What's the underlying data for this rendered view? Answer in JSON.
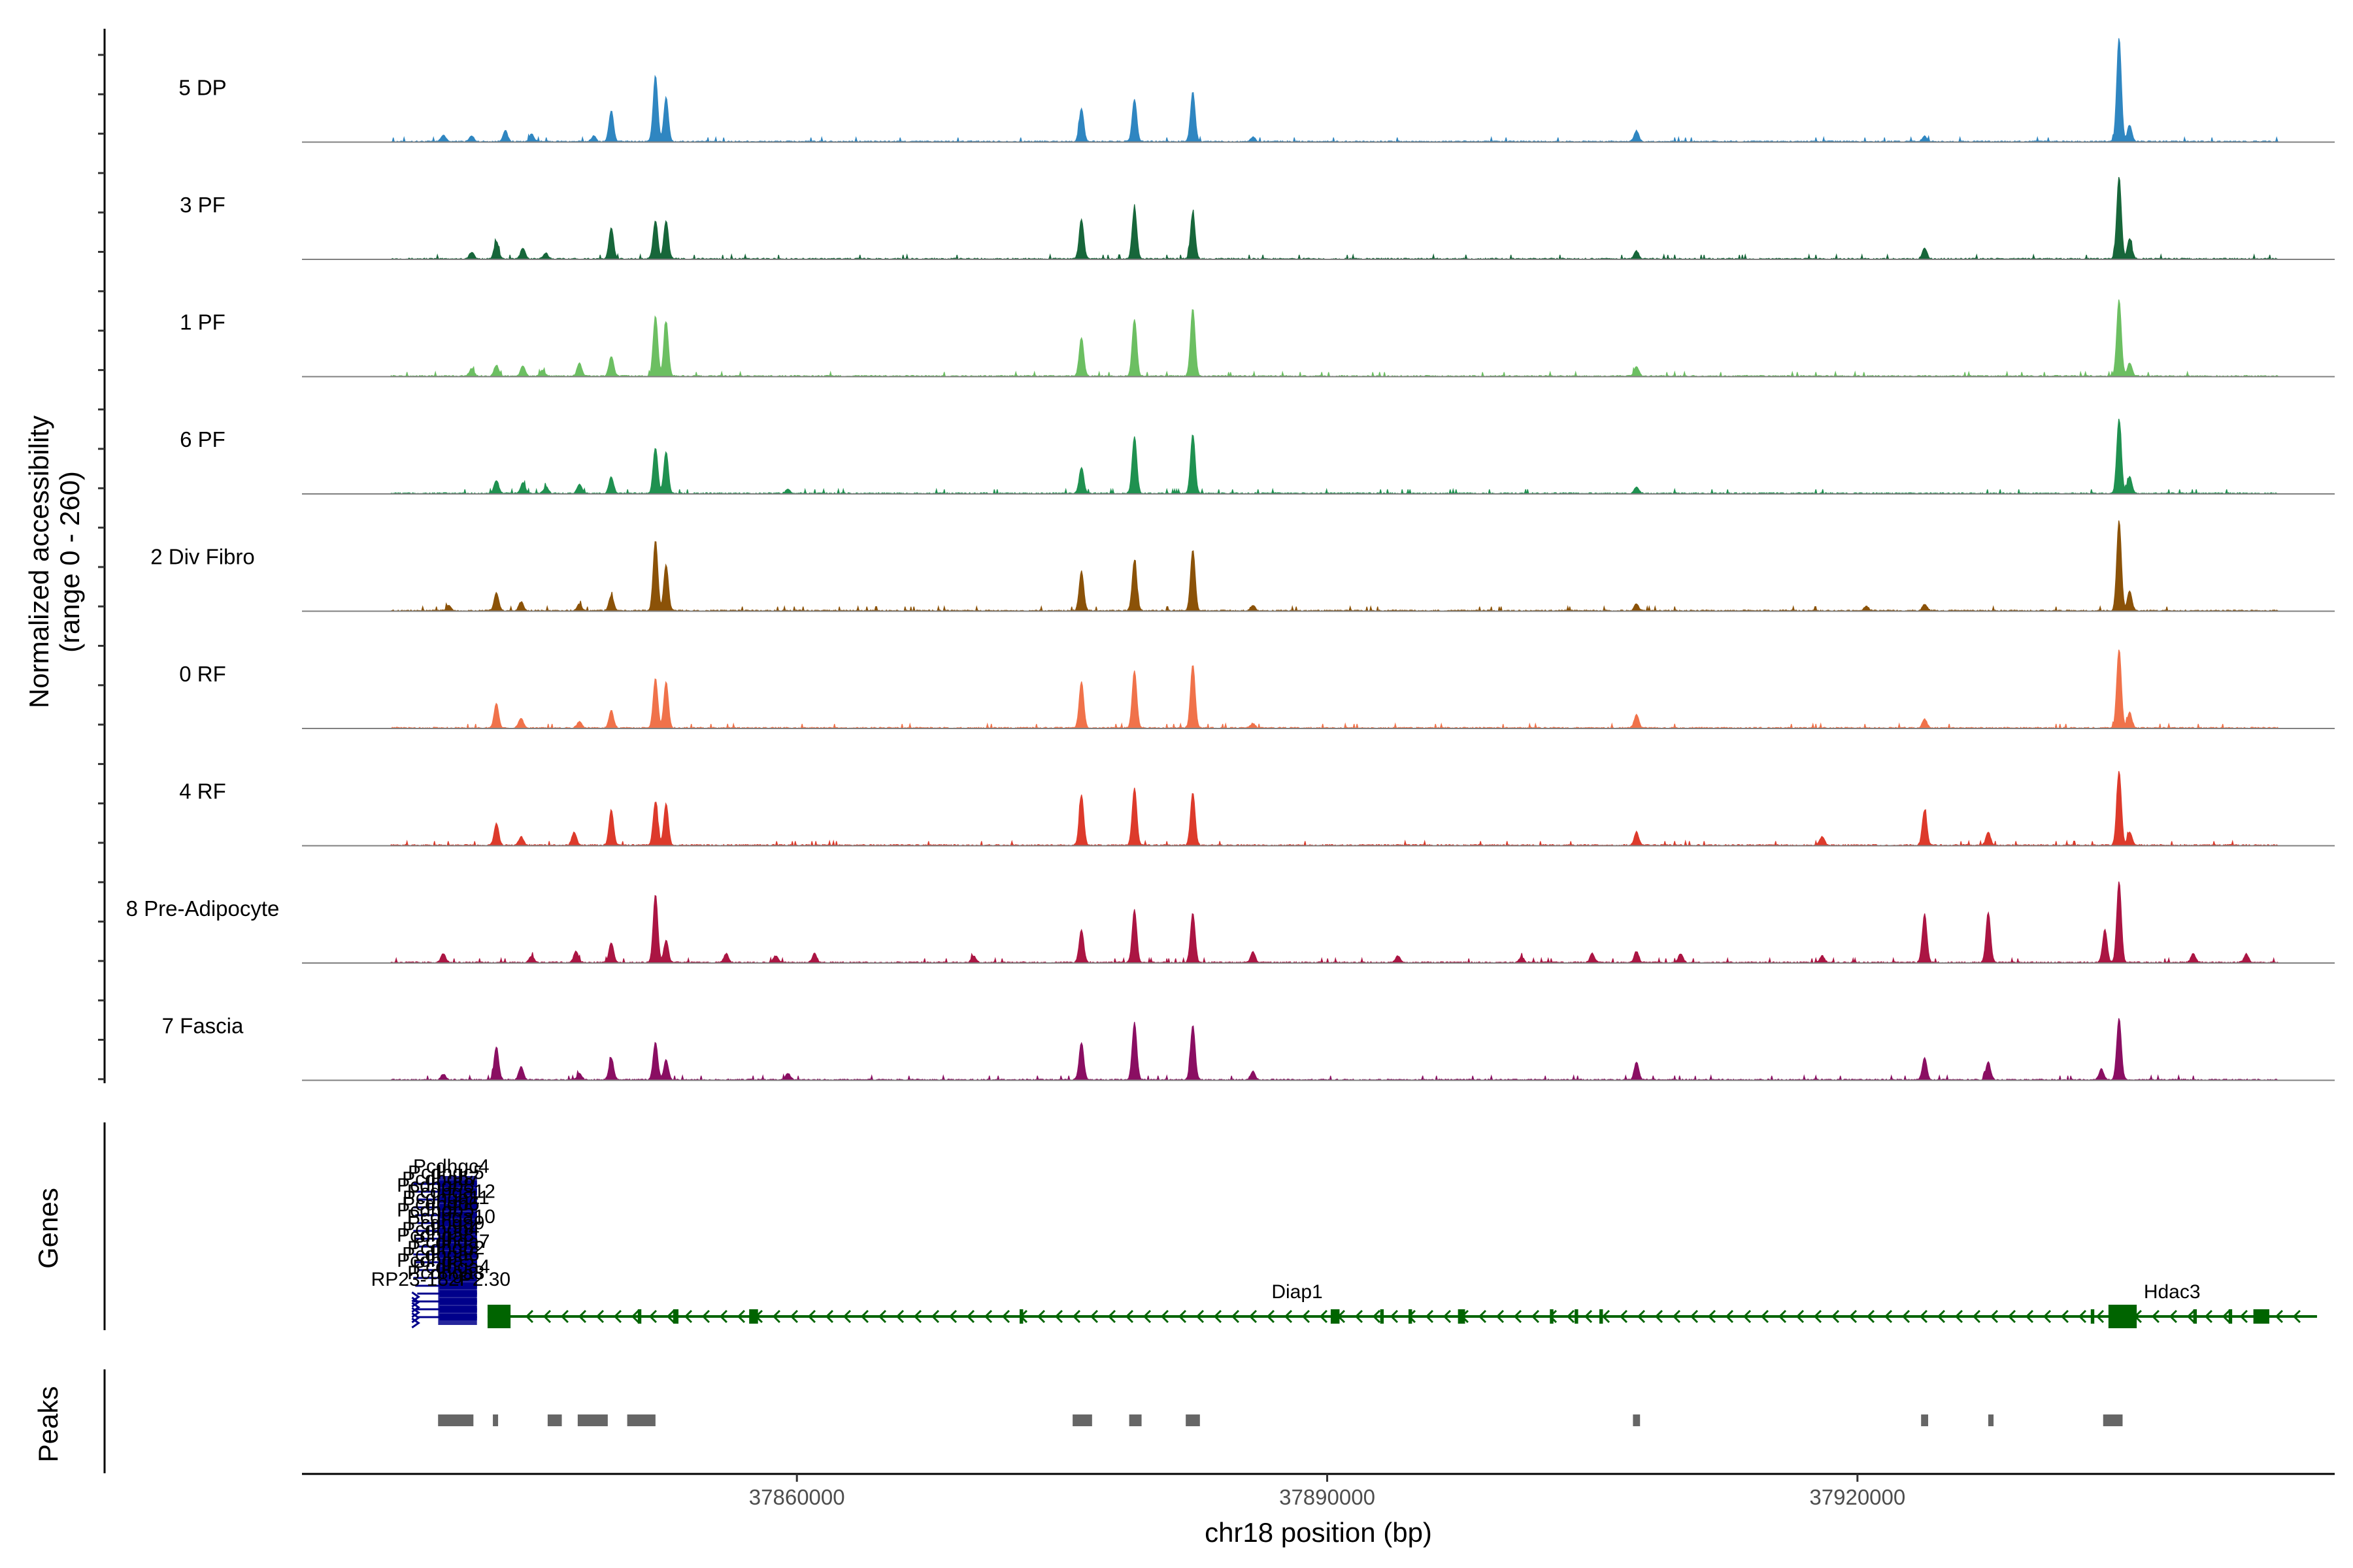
{
  "chart_data": {
    "type": "area",
    "title": "",
    "xlabel": "chr18 position (bp)",
    "ylabel": "Normalized accessibility\n(range 0 - 260)",
    "yrange": [
      0,
      260
    ],
    "xlim": [
      37832000,
      37947000
    ],
    "x_ticks": [
      {
        "value": 37860000,
        "label": "37860000"
      },
      {
        "value": 37890000,
        "label": "37890000"
      },
      {
        "value": 37920000,
        "label": "37920000"
      }
    ],
    "genes_panel_label": "Genes",
    "peaks_panel_label": "Peaks",
    "tracks": [
      {
        "name": "5 DP",
        "color": "#2f86c1",
        "peaks": [
          [
            37840000,
            0.06
          ],
          [
            37841600,
            0.05
          ],
          [
            37843500,
            0.1
          ],
          [
            37845000,
            0.07
          ],
          [
            37848500,
            0.05
          ],
          [
            37849500,
            0.28
          ],
          [
            37852000,
            0.6
          ],
          [
            37852600,
            0.4
          ],
          [
            37876100,
            0.3
          ],
          [
            37879100,
            0.38
          ],
          [
            37882400,
            0.45
          ],
          [
            37885800,
            0.04
          ],
          [
            37907500,
            0.1
          ],
          [
            37923800,
            0.05
          ],
          [
            37934800,
            0.95
          ],
          [
            37935400,
            0.15
          ]
        ]
      },
      {
        "name": "3 PF",
        "color": "#17663a",
        "peaks": [
          [
            37841600,
            0.06
          ],
          [
            37843000,
            0.16
          ],
          [
            37844500,
            0.1
          ],
          [
            37845800,
            0.05
          ],
          [
            37849500,
            0.28
          ],
          [
            37852000,
            0.35
          ],
          [
            37852600,
            0.35
          ],
          [
            37876100,
            0.36
          ],
          [
            37879100,
            0.46
          ],
          [
            37882400,
            0.42
          ],
          [
            37907500,
            0.07
          ],
          [
            37923800,
            0.1
          ],
          [
            37934800,
            0.75
          ],
          [
            37935400,
            0.18
          ]
        ]
      },
      {
        "name": "1 PF",
        "color": "#6cbf62",
        "peaks": [
          [
            37841600,
            0.07
          ],
          [
            37843000,
            0.1
          ],
          [
            37844500,
            0.09
          ],
          [
            37845600,
            0.05
          ],
          [
            37847700,
            0.12
          ],
          [
            37849500,
            0.18
          ],
          [
            37852000,
            0.55
          ],
          [
            37852600,
            0.5
          ],
          [
            37876100,
            0.35
          ],
          [
            37879100,
            0.52
          ],
          [
            37882400,
            0.62
          ],
          [
            37907500,
            0.09
          ],
          [
            37934800,
            0.7
          ],
          [
            37935400,
            0.12
          ]
        ]
      },
      {
        "name": "6 PF",
        "color": "#1f9150",
        "peaks": [
          [
            37843000,
            0.12
          ],
          [
            37844500,
            0.1
          ],
          [
            37845800,
            0.06
          ],
          [
            37847700,
            0.08
          ],
          [
            37849500,
            0.15
          ],
          [
            37852000,
            0.42
          ],
          [
            37852600,
            0.38
          ],
          [
            37859500,
            0.04
          ],
          [
            37876100,
            0.24
          ],
          [
            37879100,
            0.52
          ],
          [
            37882400,
            0.54
          ],
          [
            37907500,
            0.06
          ],
          [
            37934800,
            0.68
          ],
          [
            37935400,
            0.15
          ]
        ]
      },
      {
        "name": "2 Div Fibro",
        "color": "#8b5208",
        "peaks": [
          [
            37840300,
            0.05
          ],
          [
            37843000,
            0.16
          ],
          [
            37844400,
            0.08
          ],
          [
            37847700,
            0.06
          ],
          [
            37849500,
            0.14
          ],
          [
            37852000,
            0.64
          ],
          [
            37852600,
            0.42
          ],
          [
            37876100,
            0.36
          ],
          [
            37879100,
            0.46
          ],
          [
            37882400,
            0.56
          ],
          [
            37885800,
            0.05
          ],
          [
            37907500,
            0.06
          ],
          [
            37920500,
            0.04
          ],
          [
            37923800,
            0.06
          ],
          [
            37934800,
            0.82
          ],
          [
            37935400,
            0.18
          ]
        ]
      },
      {
        "name": "0 RF",
        "color": "#f0724a",
        "peaks": [
          [
            37843000,
            0.22
          ],
          [
            37844400,
            0.09
          ],
          [
            37847700,
            0.06
          ],
          [
            37849500,
            0.16
          ],
          [
            37852000,
            0.45
          ],
          [
            37852600,
            0.42
          ],
          [
            37876100,
            0.42
          ],
          [
            37879100,
            0.52
          ],
          [
            37882400,
            0.58
          ],
          [
            37885800,
            0.04
          ],
          [
            37907500,
            0.12
          ],
          [
            37923800,
            0.08
          ],
          [
            37934800,
            0.72
          ],
          [
            37935400,
            0.14
          ]
        ]
      },
      {
        "name": "4 RF",
        "color": "#dd3a2b",
        "peaks": [
          [
            37843000,
            0.2
          ],
          [
            37844400,
            0.08
          ],
          [
            37847400,
            0.12
          ],
          [
            37849500,
            0.32
          ],
          [
            37852000,
            0.4
          ],
          [
            37852600,
            0.38
          ],
          [
            37876100,
            0.46
          ],
          [
            37879100,
            0.52
          ],
          [
            37882400,
            0.48
          ],
          [
            37907500,
            0.12
          ],
          [
            37918000,
            0.08
          ],
          [
            37923800,
            0.32
          ],
          [
            37927400,
            0.12
          ],
          [
            37934800,
            0.68
          ],
          [
            37935400,
            0.12
          ]
        ]
      },
      {
        "name": "8 Pre-Adipocyte",
        "color": "#ab1543",
        "peaks": [
          [
            37840000,
            0.08
          ],
          [
            37845000,
            0.06
          ],
          [
            37847500,
            0.1
          ],
          [
            37849500,
            0.18
          ],
          [
            37852000,
            0.62
          ],
          [
            37852600,
            0.2
          ],
          [
            37856000,
            0.08
          ],
          [
            37858800,
            0.06
          ],
          [
            37861000,
            0.08
          ],
          [
            37870000,
            0.06
          ],
          [
            37876100,
            0.3
          ],
          [
            37879100,
            0.48
          ],
          [
            37882400,
            0.45
          ],
          [
            37885800,
            0.1
          ],
          [
            37894000,
            0.06
          ],
          [
            37901000,
            0.05
          ],
          [
            37905000,
            0.08
          ],
          [
            37907500,
            0.1
          ],
          [
            37910000,
            0.08
          ],
          [
            37918000,
            0.06
          ],
          [
            37923800,
            0.44
          ],
          [
            37927400,
            0.46
          ],
          [
            37934800,
            0.74
          ],
          [
            37934000,
            0.3
          ],
          [
            37939000,
            0.08
          ],
          [
            37942000,
            0.08
          ],
          [
            37945000,
            0.06
          ]
        ]
      },
      {
        "name": "7 Fascia",
        "color": "#8a0e62",
        "peaks": [
          [
            37840000,
            0.05
          ],
          [
            37843000,
            0.3
          ],
          [
            37844400,
            0.12
          ],
          [
            37847700,
            0.06
          ],
          [
            37849500,
            0.2
          ],
          [
            37852000,
            0.34
          ],
          [
            37852600,
            0.18
          ],
          [
            37859500,
            0.06
          ],
          [
            37876100,
            0.34
          ],
          [
            37879100,
            0.52
          ],
          [
            37882400,
            0.5
          ],
          [
            37885800,
            0.08
          ],
          [
            37907500,
            0.16
          ],
          [
            37923800,
            0.2
          ],
          [
            37927400,
            0.16
          ],
          [
            37934800,
            0.56
          ],
          [
            37933800,
            0.1
          ]
        ]
      }
    ],
    "genes": [
      {
        "name": "Diap1",
        "strand": "-",
        "start": 37842500,
        "end": 37934000,
        "color": "#006400",
        "label_pos": 37888300,
        "exons": [
          [
            37842500,
            37843800
          ],
          [
            37851000,
            37851200
          ],
          [
            37853000,
            37853300
          ],
          [
            37857300,
            37857800
          ],
          [
            37872600,
            37872800
          ],
          [
            37890200,
            37890700
          ],
          [
            37893000,
            37893200
          ],
          [
            37894600,
            37894800
          ],
          [
            37897400,
            37897800
          ],
          [
            37902600,
            37902800
          ],
          [
            37904000,
            37904200
          ],
          [
            37905400,
            37905600
          ],
          [
            37933200,
            37933400
          ]
        ]
      },
      {
        "name": "Hdac3",
        "strand": "-",
        "start": 37933500,
        "end": 37946000,
        "color": "#006400",
        "label_pos": 37937800,
        "exons": [
          [
            37934200,
            37935800
          ],
          [
            37939000,
            37939200
          ],
          [
            37941000,
            37941200
          ],
          [
            37942400,
            37943300
          ]
        ]
      }
    ],
    "gene_cluster_labels": [
      "Pcdhgc4",
      "Pcdhgc5",
      "Pcdhgb7",
      "Pcdhgb8",
      "Pcdhga12",
      "Pcdhga11",
      "Pcdhgb6",
      "Pcdhgb5",
      "Pcdhga10",
      "Pcdhga9",
      "Pcdhgb4",
      "Pcdhga8",
      "Pcdhga7",
      "Pcdhgb2",
      "Pcdhga6",
      "Pcdhga5",
      "Pcdhga4",
      "Pcdhga3",
      "RP23-182P2.30"
    ],
    "peak_regions": [
      [
        37839700,
        37841700
      ],
      [
        37842800,
        37843000
      ],
      [
        37845900,
        37846700
      ],
      [
        37847600,
        37849300
      ],
      [
        37850400,
        37852000
      ],
      [
        37875600,
        37876700
      ],
      [
        37878800,
        37879500
      ],
      [
        37882000,
        37882800
      ],
      [
        37907300,
        37907700
      ],
      [
        37923600,
        37924000
      ],
      [
        37927400,
        37927700
      ],
      [
        37933900,
        37935000
      ]
    ]
  }
}
